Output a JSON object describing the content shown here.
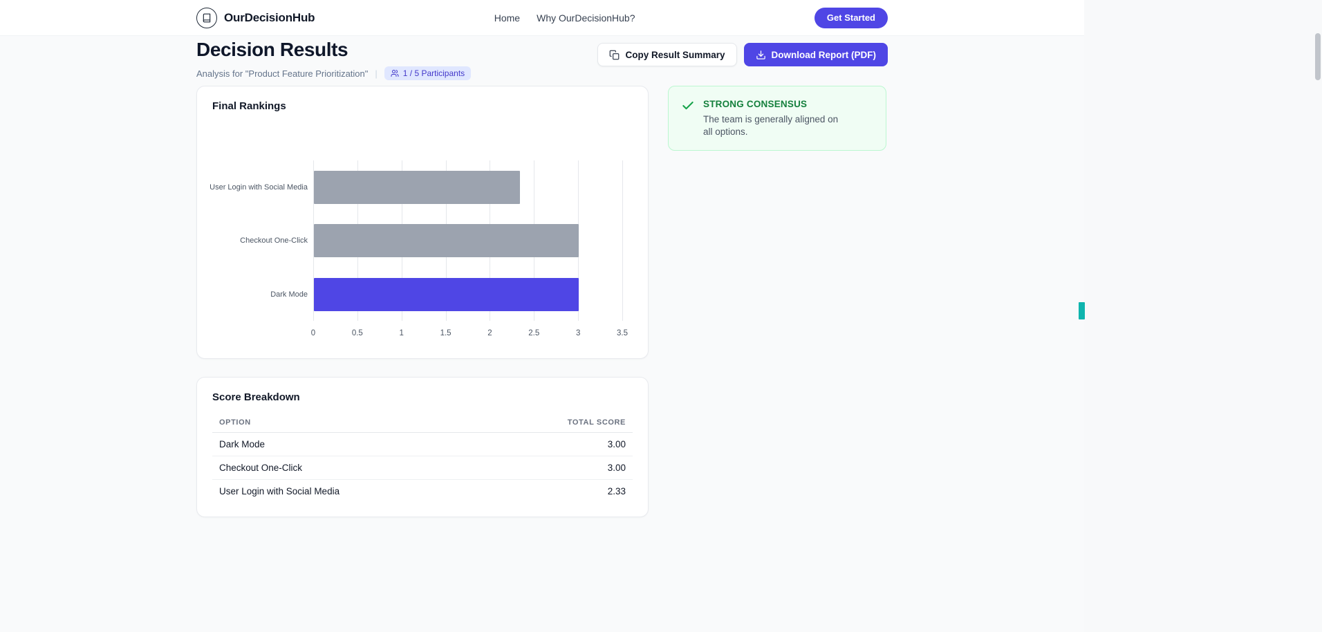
{
  "navbar": {
    "brand": "OurDecisionHub",
    "logo_icon": "book-icon",
    "links": [
      {
        "label": "Home"
      },
      {
        "label": "Why OurDecisionHub?"
      }
    ],
    "cta_label": "Get Started"
  },
  "header": {
    "title": "Decision Results",
    "subtitle": "Analysis for \"Product Feature Prioritization\"",
    "separator": "|",
    "participants_badge": "1 / 5 Participants",
    "participants_icon": "users-icon",
    "copy_button": "Copy Result Summary",
    "copy_icon": "clipboard-icon",
    "download_button": "Download Report (PDF)",
    "download_icon": "download-icon"
  },
  "rankings_card": {
    "title": "Final Rankings"
  },
  "chart_data": {
    "type": "bar",
    "orientation": "horizontal",
    "title": "Final Rankings",
    "categories": [
      "User Login with Social Media",
      "Checkout One-Click",
      "Dark Mode"
    ],
    "values": [
      2.33,
      3.0,
      3.0
    ],
    "bar_colors": [
      "#9ca3af",
      "#9ca3af",
      "#4f46e5"
    ],
    "x_ticks": [
      "0",
      "0.5",
      "1",
      "1.5",
      "2",
      "2.5",
      "3",
      "3.5"
    ],
    "xlim": [
      0,
      3.5
    ],
    "grid": true,
    "legend": false
  },
  "consensus_card": {
    "icon": "check-icon",
    "title": "STRONG CONSENSUS",
    "description": "The team is generally aligned on all options."
  },
  "score_breakdown": {
    "title": "Score Breakdown",
    "columns": [
      "Option",
      "Total Score"
    ],
    "rows": [
      {
        "option": "Dark Mode",
        "score": "3.00"
      },
      {
        "option": "Checkout One-Click",
        "score": "3.00"
      },
      {
        "option": "User Login with Social Media",
        "score": "2.33"
      }
    ]
  },
  "colors": {
    "accent": "#4f46e5",
    "badge_bg": "#e0e7ff",
    "badge_text": "#4338ca",
    "success_bg": "#f0fdf4",
    "success_border": "#bbf7d0",
    "success_text": "#15803d",
    "bar_gray": "#9ca3af",
    "edge_marker_teal": "#0fb5ae"
  }
}
